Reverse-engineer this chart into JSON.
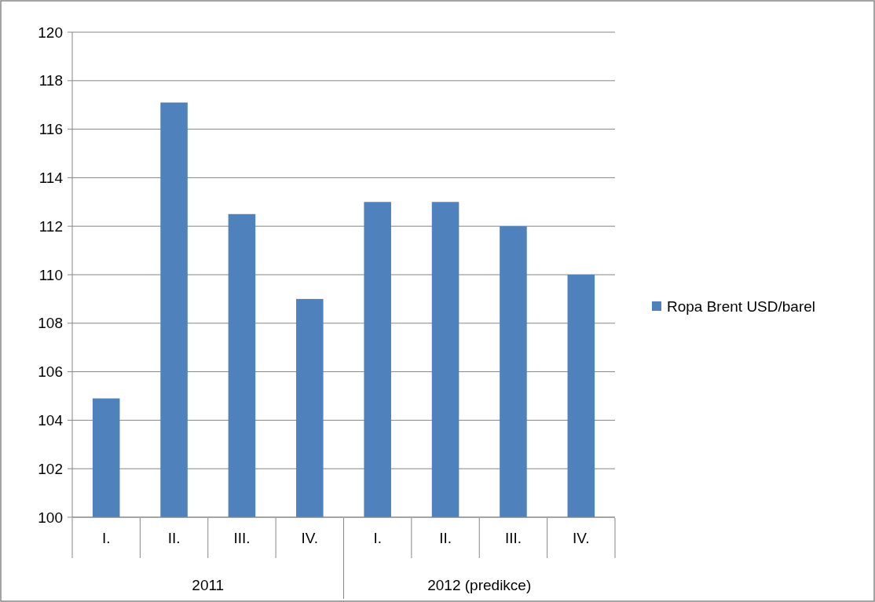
{
  "chart_data": {
    "type": "bar",
    "categories": [
      "I.",
      "II.",
      "III.",
      "IV.",
      "I.",
      "II.",
      "III.",
      "IV."
    ],
    "series": [
      {
        "name": "Ropa Brent USD/barel",
        "color": "#4f81bd",
        "values": [
          104.9,
          117.1,
          112.5,
          109,
          113,
          113,
          112,
          110
        ]
      }
    ],
    "ylim": [
      100,
      120
    ],
    "yticks": [
      100,
      102,
      104,
      106,
      108,
      110,
      112,
      114,
      116,
      118,
      120
    ],
    "grid": "y",
    "legend": "right",
    "annotations": [
      "2011",
      "2012 (predikce)"
    ]
  }
}
